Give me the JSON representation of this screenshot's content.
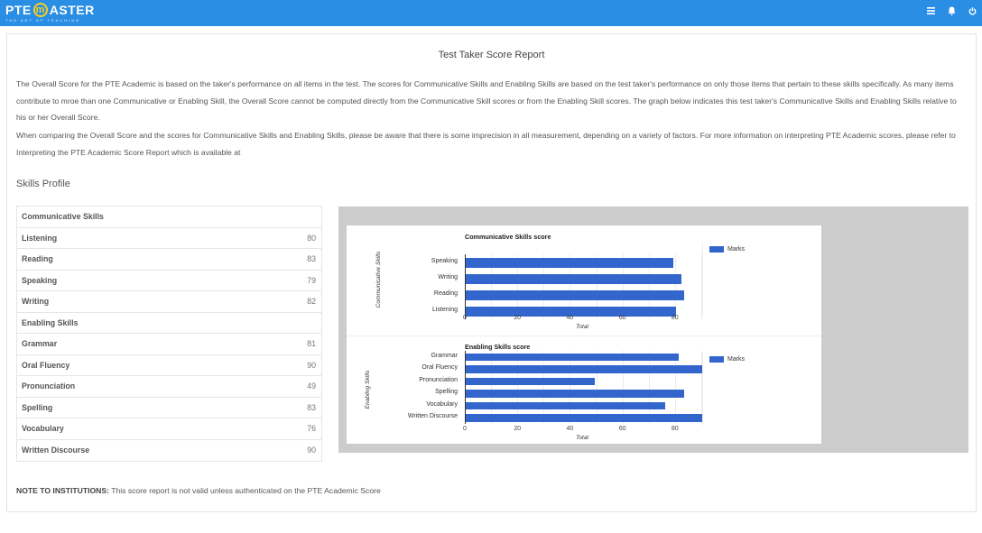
{
  "header": {
    "logo_text_left": "PTE",
    "logo_text_m": "m",
    "logo_text_right": "ASTER",
    "logo_tagline": "THE ART OF TEACHING",
    "icons": [
      "menu-icon",
      "bell-icon",
      "power-icon"
    ],
    "brand_color": "#2a8ee5"
  },
  "report": {
    "title": "Test Taker Score Report",
    "paragraph1": "The Overall Score for the PTE Academic is based on the taker's performance on all items in the test. The scores for Communicative Skills and Enabling Skills are based on the test taker's performance on only those items that pertain to these skills specifically. As many items contribute to mroe than one Communicative or Enabling Skill, the Overall Score cannot be computed directly from the Communicative Skill scores or from the Enabling Skill scores. The graph below indicates this test taker's Communicative Skills and Enabling Skills relative to his or her Overall Score.",
    "paragraph2": "When comparing the Overall Score and the scores for Communicative Skills and Enabling Skills, please be aware that there is some imprecision in all measurement, depending on a variety of factors. For more information on interpreting PTE Academic scores, please refer to Interpreting the PTE Academic Score Report which is available at",
    "section_title": "Skills Profile",
    "note_label": "NOTE TO INSTITUTIONS:",
    "note_text": " This score report is not valid unless authenticated on the PTE Academic Score"
  },
  "skills_table": {
    "communicative_header": "Communicative Skills",
    "communicative": [
      {
        "name": "Listening",
        "score": "80"
      },
      {
        "name": "Reading",
        "score": "83"
      },
      {
        "name": "Speaking",
        "score": "79"
      },
      {
        "name": "Writing",
        "score": "82"
      }
    ],
    "enabling_header": "Enabling Skills",
    "enabling": [
      {
        "name": "Grammar",
        "score": "81"
      },
      {
        "name": "Oral Fluency",
        "score": "90"
      },
      {
        "name": "Pronunciation",
        "score": "49"
      },
      {
        "name": "Spelling",
        "score": "83"
      },
      {
        "name": "Vocabulary",
        "score": "76"
      },
      {
        "name": "Written Discourse",
        "score": "90"
      }
    ]
  },
  "chart_data": [
    {
      "type": "bar",
      "orientation": "horizontal",
      "title": "Communicative Skills score",
      "categories": [
        "Speaking",
        "Writing",
        "Reading",
        "Listening"
      ],
      "series": [
        {
          "name": "Marks",
          "values": [
            79,
            82,
            83,
            80
          ],
          "color": "#3366cc"
        }
      ],
      "xlabel": "Total",
      "ylabel": "Communicative Skills",
      "xticks": [
        "0",
        "20",
        "40",
        "60",
        "80"
      ],
      "xlim": [
        0,
        90
      ],
      "grid": true,
      "legend_position": "right"
    },
    {
      "type": "bar",
      "orientation": "horizontal",
      "title": "Enabling Skills score",
      "categories": [
        "Grammar",
        "Oral Fluency",
        "Pronunciation",
        "Spelling",
        "Vocabulary",
        "Written Discourse"
      ],
      "series": [
        {
          "name": "Marks",
          "values": [
            81,
            90,
            49,
            83,
            76,
            90
          ],
          "color": "#3366cc"
        }
      ],
      "xlabel": "Total",
      "ylabel": "Enabling Skills",
      "xticks": [
        "0",
        "20",
        "40",
        "60",
        "80"
      ],
      "xlim": [
        0,
        90
      ],
      "grid": true,
      "legend_position": "right"
    }
  ]
}
